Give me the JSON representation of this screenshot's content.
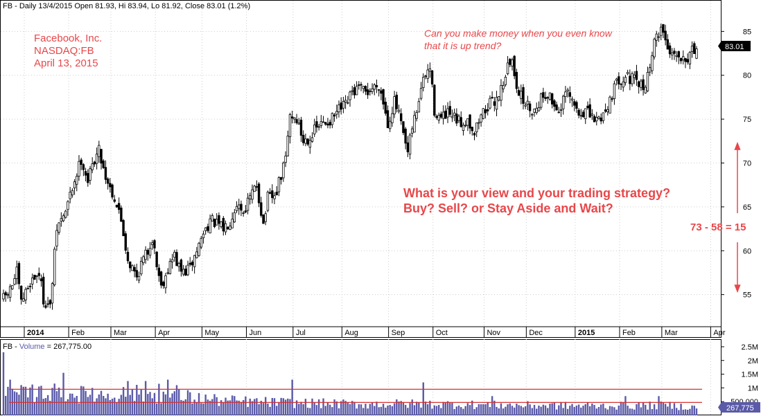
{
  "header": {
    "price_title": "FB - Daily 13/4/2015 Open 81.93, Hi 83.94, Lo 81.92, Close 83.01 (1.2%)",
    "volume_prefix": "FB - ",
    "volume_label": "Volume",
    "volume_value": " = 267,775.00"
  },
  "annotations": {
    "company_lines": [
      "Facebook, Inc.",
      "NASDAQ:FB",
      "April 13, 2015"
    ],
    "question_lines": [
      "Can you make money when you even know",
      "that it is up trend?"
    ],
    "strategy_lines": [
      "What is your view and your trading strategy?",
      "Buy? Sell? or Stay Aside and Wait?"
    ],
    "range_label": "73 - 58 = 15"
  },
  "colors": {
    "candle": "#000000",
    "volume_bar": "#5a5aa8",
    "volume_label": "#5a5aa8",
    "annotation": "#e8474a",
    "reference_line": "#d83030",
    "last_price_badge": "#000000",
    "last_volume_badge": "#5a5aa8",
    "grid": "#cccccc"
  },
  "chart_data": [
    {
      "type": "candlestick",
      "y_axis_side": "right",
      "ylim": [
        51.5,
        87
      ],
      "yticks": [
        55,
        60,
        65,
        70,
        75,
        80,
        85
      ],
      "x_month_labels": [
        {
          "label": "2014",
          "bold": true,
          "index": 0
        },
        {
          "label": "Feb",
          "index": 20
        },
        {
          "label": "Mar",
          "index": 39
        },
        {
          "label": "Apr",
          "index": 59
        },
        {
          "label": "May",
          "index": 80
        },
        {
          "label": "Jun",
          "index": 100
        },
        {
          "label": "Jul",
          "index": 121
        },
        {
          "label": "Aug",
          "index": 143
        },
        {
          "label": "Sep",
          "index": 164
        },
        {
          "label": "Oct",
          "index": 184
        },
        {
          "label": "Nov",
          "index": 207
        },
        {
          "label": "Dec",
          "index": 226
        },
        {
          "label": "2015",
          "bold": true,
          "index": 248
        },
        {
          "label": "Feb",
          "index": 268
        },
        {
          "label": "Mar",
          "index": 287
        },
        {
          "label": "Apr",
          "index": 309
        }
      ],
      "last_price": "83.01",
      "close_anchors": [
        [
          0,
          54.5
        ],
        [
          3,
          55.5
        ],
        [
          6,
          57.5
        ],
        [
          8,
          54.0
        ],
        [
          12,
          56.5
        ],
        [
          16,
          57.5
        ],
        [
          18,
          54.5
        ],
        [
          21,
          53.5
        ],
        [
          24,
          62.5
        ],
        [
          28,
          64.5
        ],
        [
          32,
          68.0
        ],
        [
          35,
          70.5
        ],
        [
          38,
          68.0
        ],
        [
          41,
          70.5
        ],
        [
          43,
          71.5
        ],
        [
          46,
          68.5
        ],
        [
          50,
          66.0
        ],
        [
          53,
          63.5
        ],
        [
          56,
          59.0
        ],
        [
          60,
          57.0
        ],
        [
          62,
          58.5
        ],
        [
          65,
          60.0
        ],
        [
          67,
          61.5
        ],
        [
          69,
          58.5
        ],
        [
          71,
          56.0
        ],
        [
          74,
          58.0
        ],
        [
          77,
          59.5
        ],
        [
          79,
          58.0
        ],
        [
          81,
          57.5
        ],
        [
          84,
          58.0
        ],
        [
          87,
          60.0
        ],
        [
          90,
          62.0
        ],
        [
          93,
          63.5
        ],
        [
          96,
          63.0
        ],
        [
          99,
          62.5
        ],
        [
          102,
          63.5
        ],
        [
          105,
          65.5
        ],
        [
          108,
          64.5
        ],
        [
          111,
          66.0
        ],
        [
          114,
          67.5
        ],
        [
          117,
          63.0
        ],
        [
          119,
          66.0
        ],
        [
          122,
          66.0
        ],
        [
          125,
          68.5
        ],
        [
          127,
          70.5
        ],
        [
          129,
          75.5
        ],
        [
          132,
          75.0
        ],
        [
          135,
          72.5
        ],
        [
          138,
          73.0
        ],
        [
          141,
          74.0
        ],
        [
          144,
          74.5
        ],
        [
          148,
          75.0
        ],
        [
          151,
          76.0
        ],
        [
          154,
          76.5
        ],
        [
          157,
          78.0
        ],
        [
          160,
          78.5
        ],
        [
          163,
          78.0
        ],
        [
          166,
          78.5
        ],
        [
          169,
          79.0
        ],
        [
          171,
          77.0
        ],
        [
          173,
          74.5
        ],
        [
          176,
          77.0
        ],
        [
          178,
          75.5
        ],
        [
          180,
          73.0
        ],
        [
          182,
          71.0
        ],
        [
          184,
          74.0
        ],
        [
          186,
          76.0
        ],
        [
          188,
          78.5
        ],
        [
          190,
          80.0
        ],
        [
          192,
          80.8
        ],
        [
          194,
          76.0
        ],
        [
          197,
          75.0
        ],
        [
          200,
          75.5
        ],
        [
          203,
          75.0
        ],
        [
          206,
          74.5
        ],
        [
          209,
          75.0
        ],
        [
          212,
          73.5
        ],
        [
          215,
          75.5
        ],
        [
          218,
          76.5
        ],
        [
          221,
          77.0
        ],
        [
          224,
          78.5
        ],
        [
          227,
          81.0
        ],
        [
          229,
          81.5
        ],
        [
          231,
          79.0
        ],
        [
          233,
          77.5
        ],
        [
          236,
          76.5
        ],
        [
          239,
          76.0
        ],
        [
          242,
          77.5
        ],
        [
          245,
          78.0
        ],
        [
          248,
          76.5
        ],
        [
          251,
          76.0
        ],
        [
          253,
          78.0
        ],
        [
          256,
          77.0
        ],
        [
          259,
          75.5
        ],
        [
          262,
          76.0
        ],
        [
          265,
          75.0
        ],
        [
          268,
          75.0
        ],
        [
          271,
          76.0
        ],
        [
          274,
          78.0
        ],
        [
          277,
          79.5
        ],
        [
          280,
          80.0
        ],
        [
          283,
          79.5
        ],
        [
          286,
          79.0
        ],
        [
          288,
          78.5
        ],
        [
          290,
          80.0
        ],
        [
          292,
          82.5
        ],
        [
          294,
          84.5
        ],
        [
          296,
          85.5
        ],
        [
          298,
          84.0
        ],
        [
          300,
          82.5
        ],
        [
          302,
          83.0
        ],
        [
          304,
          82.0
        ],
        [
          306,
          82.5
        ],
        [
          308,
          82.0
        ],
        [
          309,
          83.01
        ]
      ]
    },
    {
      "type": "bar",
      "series_name": "Volume",
      "y_axis_side": "right",
      "ylim": [
        0,
        2600000
      ],
      "ytick_labels": [
        "2.5M",
        "2M",
        "1.5M",
        "1M",
        "500,000"
      ],
      "yticks": [
        2500000,
        2000000,
        1500000,
        1000000,
        500000
      ],
      "reference_lines": [
        950000,
        470000
      ],
      "last_volume": "267,775",
      "spikes": [
        [
          0,
          2300000
        ],
        [
          3,
          1300000
        ],
        [
          16,
          1050000
        ],
        [
          22,
          1000000
        ],
        [
          27,
          1550000
        ],
        [
          40,
          1000000
        ],
        [
          56,
          1250000
        ],
        [
          58,
          950000
        ],
        [
          64,
          1250000
        ],
        [
          70,
          1150000
        ],
        [
          74,
          1300000
        ],
        [
          78,
          1100000
        ],
        [
          130,
          1300000
        ],
        [
          189,
          1200000
        ],
        [
          220,
          700000
        ],
        [
          280,
          700000
        ],
        [
          295,
          700000
        ],
        [
          312,
          250000
        ]
      ],
      "volume_anchors": [
        [
          0,
          700000
        ],
        [
          20,
          800000
        ],
        [
          40,
          700000
        ],
        [
          60,
          750000
        ],
        [
          80,
          650000
        ],
        [
          100,
          500000
        ],
        [
          120,
          450000
        ],
        [
          140,
          420000
        ],
        [
          160,
          380000
        ],
        [
          180,
          400000
        ],
        [
          200,
          380000
        ],
        [
          220,
          360000
        ],
        [
          240,
          340000
        ],
        [
          260,
          330000
        ],
        [
          280,
          330000
        ],
        [
          300,
          340000
        ],
        [
          312,
          267775
        ]
      ]
    }
  ]
}
